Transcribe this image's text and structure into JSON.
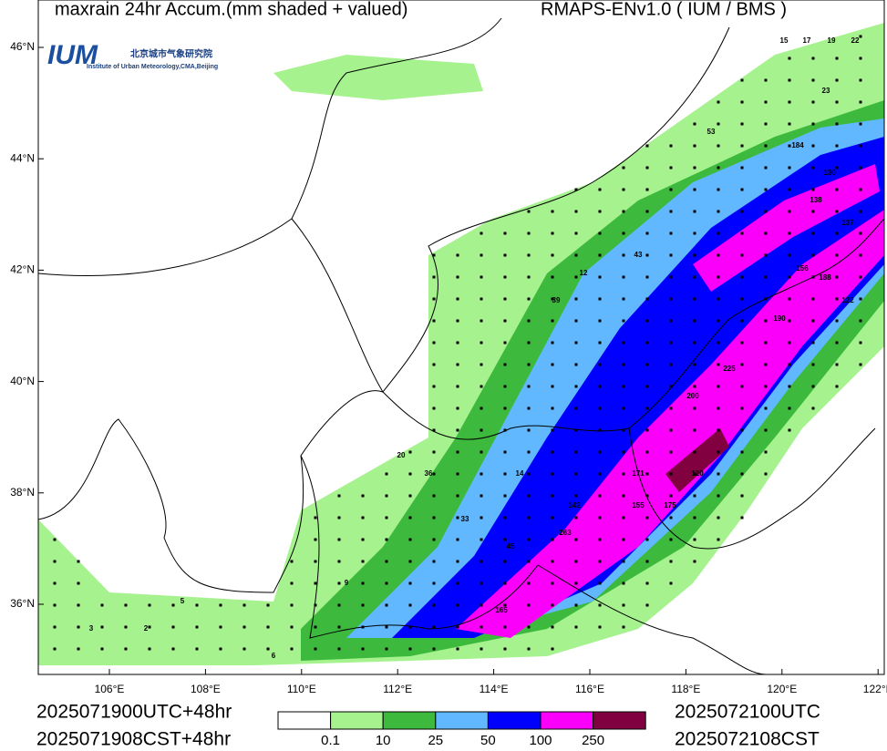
{
  "header": {
    "title_left": "maxrain 24hr Accum.(mm shaded + valued)",
    "title_right": "RMAPS-ENv1.0 ( IUM / BMS )"
  },
  "logo": {
    "mark": "IUM",
    "cn": "北京城市气象研究院",
    "en": "Institute of Urban Meteorology,CMA,Beijing"
  },
  "map": {
    "lon_ticks": [
      {
        "value": 106,
        "label": "106°E"
      },
      {
        "value": 108,
        "label": "108°E"
      },
      {
        "value": 110,
        "label": "110°E"
      },
      {
        "value": 112,
        "label": "112°E"
      },
      {
        "value": 114,
        "label": "114°E"
      },
      {
        "value": 116,
        "label": "116°E"
      },
      {
        "value": 118,
        "label": "118°E"
      },
      {
        "value": 120,
        "label": "120°E"
      },
      {
        "value": 122,
        "label": "122°E"
      }
    ],
    "lat_ticks": [
      {
        "value": 36,
        "label": "36°N"
      },
      {
        "value": 38,
        "label": "38°N"
      },
      {
        "value": 40,
        "label": "40°N"
      },
      {
        "value": 42,
        "label": "42°N"
      },
      {
        "value": 44,
        "label": "44°N"
      },
      {
        "value": 46,
        "label": "46°N"
      }
    ],
    "sample_values": [
      15,
      17,
      19,
      22,
      23,
      53,
      184,
      130,
      138,
      137,
      156,
      188,
      122,
      190,
      225,
      200,
      171,
      120,
      175,
      155,
      142,
      263,
      165,
      45,
      33,
      12,
      39,
      43,
      14,
      36,
      20,
      9,
      6,
      5,
      2,
      3
    ]
  },
  "legend": {
    "levels": [
      0.1,
      10,
      25,
      50,
      100,
      250
    ],
    "colors": [
      "#ffffff",
      "#a6f28f",
      "#3dba3d",
      "#61b8ff",
      "#0000ff",
      "#fa00fa",
      "#800040"
    ]
  },
  "footer": {
    "init_utc": "2025071900UTC+48hr",
    "init_cst": "2025071908CST+48hr",
    "valid_utc": "2025072100UTC",
    "valid_cst": "2025072108CST"
  }
}
